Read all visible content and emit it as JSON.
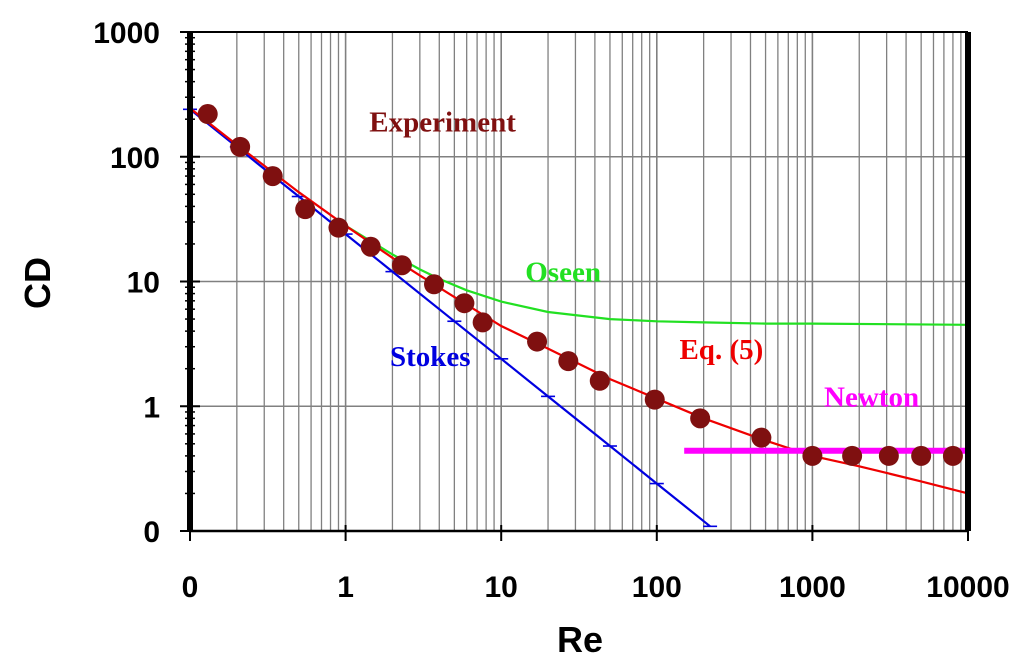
{
  "chart_data": {
    "type": "scatter",
    "title": "",
    "xlabel": "Re",
    "ylabel": "CD",
    "x_scale": "log",
    "y_scale": "log",
    "xlim": [
      0.1,
      10000
    ],
    "ylim": [
      0.1,
      1000
    ],
    "grid": true,
    "x_ticks": [
      {
        "value": 0.1,
        "label": "0"
      },
      {
        "value": 1,
        "label": "1"
      },
      {
        "value": 10,
        "label": "10"
      },
      {
        "value": 100,
        "label": "100"
      },
      {
        "value": 1000,
        "label": "1000"
      },
      {
        "value": 10000,
        "label": "10000"
      }
    ],
    "y_ticks": [
      {
        "value": 0.1,
        "label": "0"
      },
      {
        "value": 1,
        "label": "1"
      },
      {
        "value": 10,
        "label": "10"
      },
      {
        "value": 100,
        "label": "100"
      },
      {
        "value": 1000,
        "label": "1000"
      }
    ],
    "series": [
      {
        "name": "Experiment",
        "kind": "points",
        "color": "#7f1010",
        "x": [
          0.13,
          0.21,
          0.34,
          0.55,
          0.9,
          1.45,
          2.3,
          3.7,
          5.8,
          7.6,
          17,
          27,
          43,
          97,
          190,
          470,
          1000,
          1800,
          3100,
          5000,
          8000
        ],
        "y": [
          220,
          120,
          70,
          38,
          27,
          19,
          13.5,
          9.5,
          6.7,
          4.7,
          3.3,
          2.3,
          1.6,
          1.13,
          0.8,
          0.56,
          0.4,
          0.4,
          0.4,
          0.4,
          0.4
        ]
      },
      {
        "name": "Stokes",
        "kind": "line",
        "color": "#0000e0",
        "x": [
          0.1,
          0.2,
          0.5,
          1,
          2,
          5,
          10,
          20,
          50,
          100,
          220
        ],
        "y": [
          240,
          120,
          48,
          24,
          12,
          4.8,
          2.4,
          1.2,
          0.48,
          0.24,
          0.109
        ]
      },
      {
        "name": "Oseen",
        "kind": "line",
        "color": "#22e022",
        "x": [
          1,
          2,
          3,
          4,
          6,
          10,
          20,
          50,
          100,
          200,
          500,
          1000,
          10000
        ],
        "y": [
          28,
          16.5,
          12.5,
          10.5,
          8.5,
          6.9,
          5.7,
          5,
          4.8,
          4.7,
          4.6,
          4.6,
          4.5
        ]
      },
      {
        "name": "Eq. (5)",
        "kind": "line",
        "color": "#ee0000",
        "x": [
          0.1,
          0.2,
          0.5,
          1,
          2,
          3,
          5,
          10,
          20,
          50,
          100,
          200,
          500,
          1000,
          2000,
          5000,
          10000
        ],
        "y": [
          245,
          125,
          52,
          28,
          15.5,
          11.2,
          7.5,
          4.4,
          2.9,
          1.65,
          1.15,
          0.8,
          0.53,
          0.4,
          0.33,
          0.25,
          0.2
        ]
      },
      {
        "name": "Newton",
        "kind": "line",
        "color": "#ff00ff",
        "x": [
          150,
          10000
        ],
        "y": [
          0.44,
          0.44
        ]
      }
    ],
    "annotations": [
      {
        "text": "Experiment",
        "color": "#7f1010",
        "x": 4.2,
        "y": 160
      },
      {
        "text": "Oseen",
        "color": "#22e022",
        "x": 25,
        "y": 10
      },
      {
        "text": "Stokes",
        "color": "#0000e0",
        "x": 3.5,
        "y": 2.1
      },
      {
        "text": "Eq. (5)",
        "color": "#ee0000",
        "x": 260,
        "y": 2.4
      },
      {
        "text": "Newton",
        "color": "#ff00ff",
        "x": 2400,
        "y": 1
      }
    ]
  }
}
